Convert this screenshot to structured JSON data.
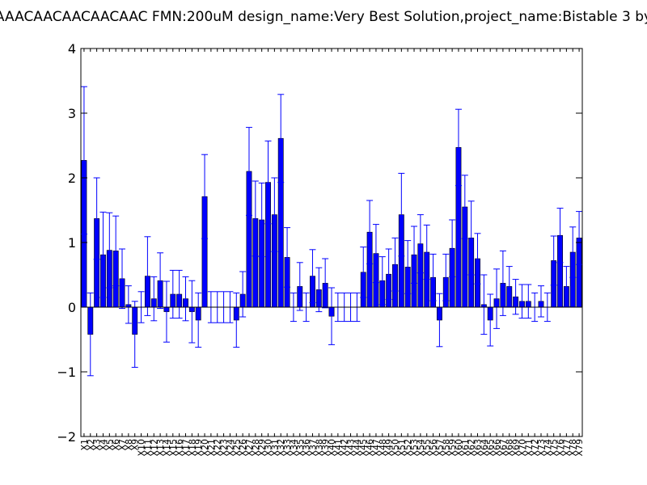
{
  "chart_data": {
    "type": "bar",
    "title": "AAACAACAACAACAAC  FMN:200uM  design_name:Very Best Solution,project_name:Bistable 3 by",
    "xlabel": "",
    "ylabel": "",
    "ylim": [
      -2,
      4
    ],
    "yticks": [
      -2,
      -1,
      0,
      1,
      2,
      3,
      4
    ],
    "ytick_labels": [
      "−2",
      "−1",
      "0",
      "1",
      "2",
      "3",
      "4"
    ],
    "grid": false,
    "bar_color": "#0000ff",
    "error_color": "#0000ff",
    "categories": [
      "X1",
      "X2",
      "X3",
      "X4",
      "X5",
      "X6",
      "X7",
      "X8",
      "X9",
      "X10",
      "X11",
      "X12",
      "X13",
      "X14",
      "X15",
      "X16",
      "X17",
      "X18",
      "X19",
      "X20",
      "X21",
      "X22",
      "X23",
      "X24",
      "X25",
      "X26",
      "X27",
      "X28",
      "X29",
      "X30",
      "X31",
      "X32",
      "X33",
      "X34",
      "X35",
      "X36",
      "X37",
      "X38",
      "X39",
      "X40",
      "X41",
      "X42",
      "X43",
      "X44",
      "X45",
      "X46",
      "X47",
      "X48",
      "X49",
      "X50",
      "X51",
      "X52",
      "X53",
      "X54",
      "X55",
      "X56",
      "X57",
      "X58",
      "X59",
      "X60",
      "X61",
      "X62",
      "X63",
      "X64",
      "X65",
      "X66",
      "X67",
      "X68",
      "X69",
      "X70",
      "X71",
      "X72",
      "X73",
      "X74",
      "X75",
      "X76",
      "X77",
      "X78",
      "X79"
    ],
    "values": [
      2.27,
      -0.42,
      1.37,
      0.81,
      0.88,
      0.87,
      0.44,
      0.04,
      -0.42,
      0.0,
      0.48,
      0.13,
      0.41,
      -0.07,
      0.2,
      0.2,
      0.13,
      -0.07,
      -0.2,
      1.71,
      0.0,
      0.0,
      0.0,
      0.0,
      -0.2,
      0.2,
      2.1,
      1.37,
      1.35,
      1.93,
      1.43,
      2.61,
      0.77,
      0.0,
      0.32,
      0.0,
      0.48,
      0.27,
      0.37,
      -0.14,
      0.0,
      0.0,
      0.0,
      0.0,
      0.54,
      1.16,
      0.83,
      0.41,
      0.51,
      0.66,
      1.43,
      0.62,
      0.81,
      0.98,
      0.85,
      0.46,
      -0.2,
      0.46,
      0.91,
      2.47,
      1.55,
      1.07,
      0.75,
      0.04,
      -0.2,
      0.13,
      0.37,
      0.32,
      0.16,
      0.09,
      0.09,
      0.0,
      0.09,
      0.0,
      0.72,
      1.11,
      0.32,
      0.85,
      1.07
    ],
    "errors": [
      1.14,
      0.64,
      0.63,
      0.66,
      0.58,
      0.54,
      0.46,
      0.29,
      0.51,
      0.24,
      0.61,
      0.34,
      0.43,
      0.47,
      0.37,
      0.37,
      0.34,
      0.48,
      0.42,
      0.65,
      0.24,
      0.24,
      0.24,
      0.24,
      0.42,
      0.35,
      0.68,
      0.58,
      0.57,
      0.64,
      0.57,
      0.68,
      0.46,
      0.22,
      0.37,
      0.22,
      0.41,
      0.34,
      0.38,
      0.44,
      0.22,
      0.22,
      0.22,
      0.22,
      0.39,
      0.49,
      0.45,
      0.37,
      0.39,
      0.41,
      0.64,
      0.41,
      0.44,
      0.45,
      0.42,
      0.36,
      0.41,
      0.36,
      0.44,
      0.59,
      0.49,
      0.57,
      0.39,
      0.46,
      0.4,
      0.46,
      0.5,
      0.31,
      0.27,
      0.26,
      0.26,
      0.22,
      0.24,
      0.22,
      0.38,
      0.42,
      0.31,
      0.39,
      0.41
    ]
  }
}
